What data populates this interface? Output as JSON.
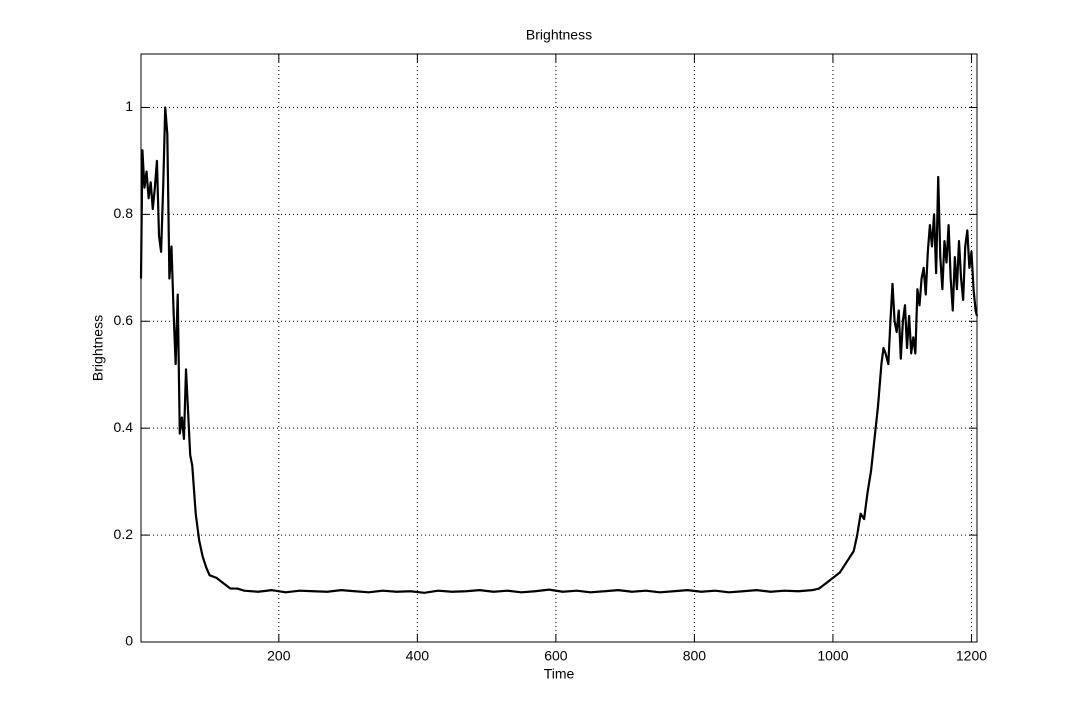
{
  "chart_data": {
    "type": "line",
    "title": "Brightness",
    "x_label": "Time",
    "y_label": "Brightness",
    "xlim": [
      1,
      1208
    ],
    "ylim": [
      0,
      1.1
    ],
    "xticks": [
      200,
      400,
      600,
      800,
      1000,
      1200
    ],
    "yticks": [
      0,
      0.2,
      0.4,
      0.6,
      0.8,
      1
    ],
    "grid": true,
    "series": [
      {
        "name": "Brightness",
        "color": "#000000",
        "x": [
          1,
          3,
          6,
          9,
          12,
          15,
          18,
          21,
          24,
          27,
          30,
          33,
          36,
          39,
          42,
          45,
          48,
          51,
          54,
          57,
          60,
          63,
          66,
          69,
          72,
          75,
          80,
          85,
          90,
          95,
          100,
          110,
          120,
          130,
          140,
          150,
          170,
          190,
          210,
          230,
          250,
          270,
          290,
          310,
          330,
          350,
          370,
          390,
          410,
          430,
          450,
          470,
          490,
          510,
          530,
          550,
          570,
          590,
          610,
          630,
          650,
          670,
          690,
          710,
          730,
          750,
          770,
          790,
          810,
          830,
          850,
          870,
          890,
          910,
          930,
          950,
          970,
          980,
          990,
          1000,
          1010,
          1020,
          1030,
          1035,
          1040,
          1045,
          1050,
          1055,
          1060,
          1065,
          1070,
          1073,
          1076,
          1080,
          1083,
          1086,
          1089,
          1092,
          1095,
          1098,
          1101,
          1104,
          1107,
          1110,
          1113,
          1116,
          1119,
          1122,
          1125,
          1128,
          1131,
          1134,
          1137,
          1140,
          1143,
          1146,
          1149,
          1152,
          1155,
          1158,
          1161,
          1164,
          1167,
          1170,
          1173,
          1176,
          1179,
          1182,
          1185,
          1188,
          1191,
          1194,
          1197,
          1200,
          1203,
          1206,
          1208
        ],
        "values": [
          0.68,
          0.92,
          0.85,
          0.88,
          0.83,
          0.86,
          0.81,
          0.85,
          0.9,
          0.76,
          0.73,
          0.85,
          1.0,
          0.95,
          0.68,
          0.74,
          0.62,
          0.52,
          0.65,
          0.39,
          0.42,
          0.38,
          0.51,
          0.43,
          0.35,
          0.33,
          0.24,
          0.19,
          0.16,
          0.14,
          0.125,
          0.12,
          0.11,
          0.1,
          0.1,
          0.096,
          0.094,
          0.097,
          0.093,
          0.096,
          0.095,
          0.094,
          0.097,
          0.095,
          0.093,
          0.096,
          0.094,
          0.095,
          0.092,
          0.096,
          0.094,
          0.095,
          0.097,
          0.094,
          0.096,
          0.093,
          0.095,
          0.098,
          0.094,
          0.096,
          0.093,
          0.095,
          0.097,
          0.094,
          0.096,
          0.093,
          0.095,
          0.097,
          0.094,
          0.096,
          0.093,
          0.095,
          0.097,
          0.094,
          0.096,
          0.095,
          0.097,
          0.1,
          0.11,
          0.12,
          0.13,
          0.15,
          0.17,
          0.2,
          0.24,
          0.23,
          0.28,
          0.32,
          0.38,
          0.44,
          0.52,
          0.55,
          0.54,
          0.52,
          0.6,
          0.67,
          0.6,
          0.58,
          0.62,
          0.53,
          0.6,
          0.63,
          0.55,
          0.61,
          0.54,
          0.57,
          0.54,
          0.66,
          0.63,
          0.68,
          0.7,
          0.65,
          0.73,
          0.78,
          0.74,
          0.8,
          0.69,
          0.87,
          0.72,
          0.66,
          0.75,
          0.71,
          0.78,
          0.68,
          0.62,
          0.72,
          0.66,
          0.75,
          0.68,
          0.64,
          0.74,
          0.77,
          0.7,
          0.73,
          0.66,
          0.62,
          0.61
        ]
      }
    ]
  }
}
